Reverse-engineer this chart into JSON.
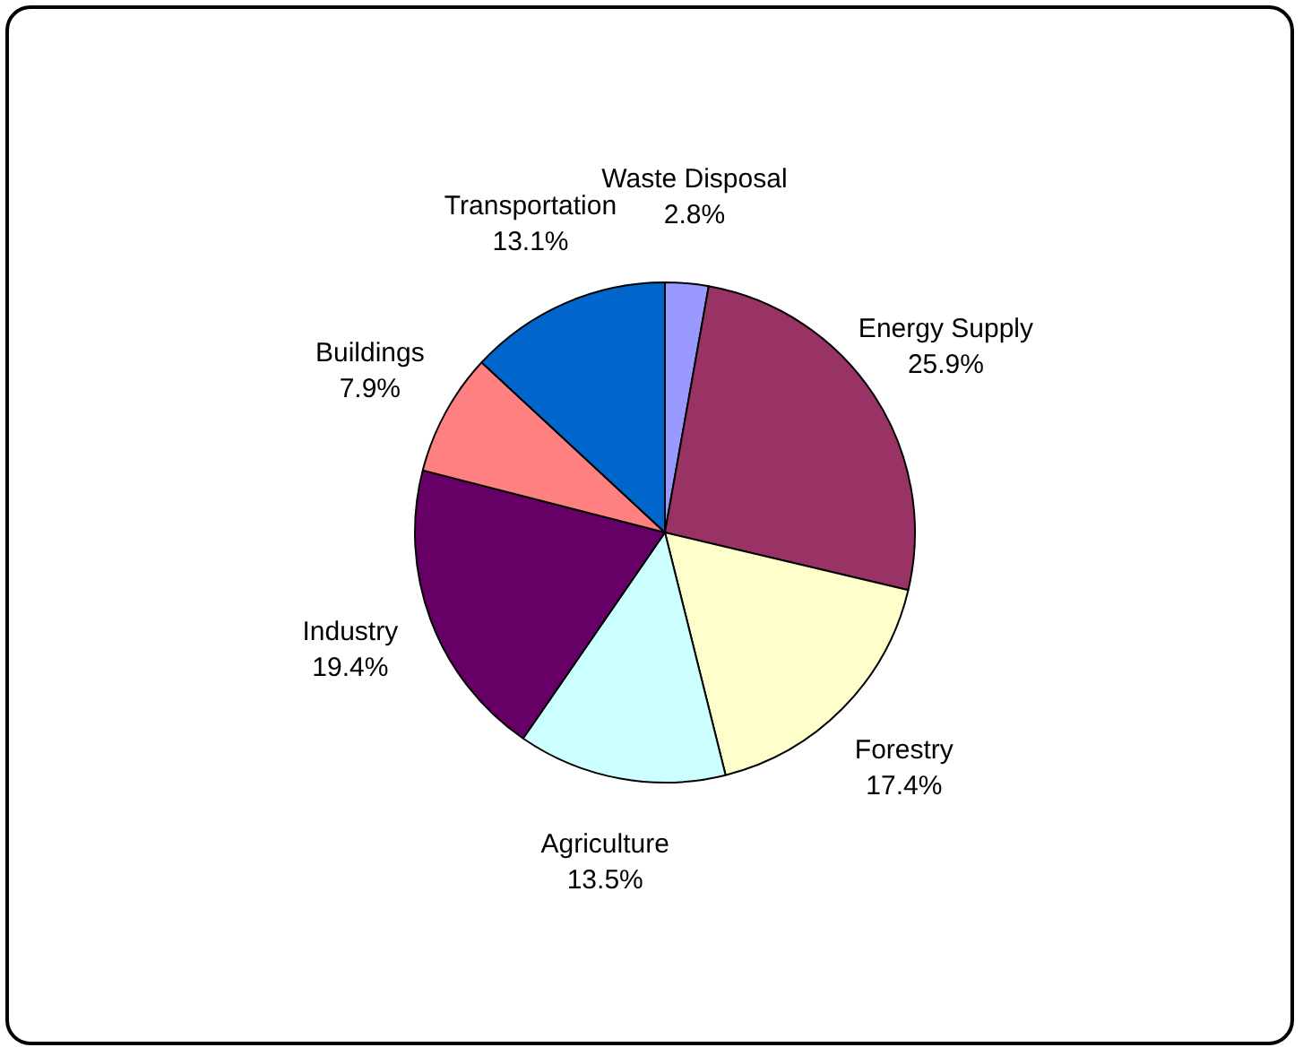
{
  "chart_data": {
    "type": "pie",
    "categories": [
      "Waste Disposal",
      "Energy Supply",
      "Forestry",
      "Agriculture",
      "Industry",
      "Buildings",
      "Transportation"
    ],
    "values": [
      2.8,
      25.9,
      17.4,
      13.5,
      19.4,
      7.9,
      13.1
    ],
    "colors": [
      "#9999ff",
      "#993366",
      "#ffffcc",
      "#ccffff",
      "#660066",
      "#ff8080",
      "#0066cc"
    ],
    "value_labels": [
      "2.8%",
      "25.9%",
      "17.4%",
      "13.5%",
      "19.4%",
      "7.9%",
      "13.1%"
    ],
    "legend": false
  }
}
